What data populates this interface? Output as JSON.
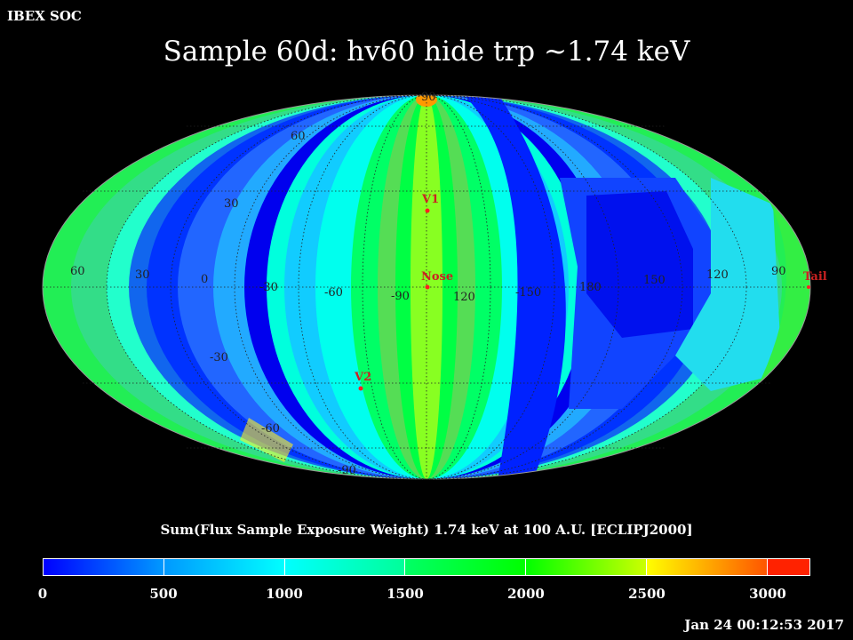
{
  "header": {
    "org": "IBEX SOC"
  },
  "title": "Sample 60d: hv60 hide trp ~1.74 keV",
  "colorbar": {
    "title": "Sum(Flux Sample Exposure Weight)  1.74 keV at 100 A.U. [ECLIPJ2000]",
    "ticks": [
      "0",
      "500",
      "1000",
      "1500",
      "2000",
      "2500",
      "3000"
    ],
    "min": 0,
    "max": 3175
  },
  "map": {
    "projection": "mollweide",
    "graticule_labels": {
      "lat": [
        "90",
        "60",
        "30",
        "0",
        "-30",
        "-60",
        "-90"
      ],
      "lon": [
        "60",
        "30",
        "0",
        "-30",
        "-60",
        "-90",
        "120",
        "-150",
        "180",
        "150",
        "120",
        "90"
      ]
    },
    "markers": [
      {
        "label": "V1",
        "color": "#ff2020"
      },
      {
        "label": "Nose",
        "color": "#ff2020"
      },
      {
        "label": "V2",
        "color": "#ff2020"
      },
      {
        "label": "Tail",
        "color": "#ff2020"
      }
    ]
  },
  "timestamp": "Jan 24 00:12:53 2017"
}
